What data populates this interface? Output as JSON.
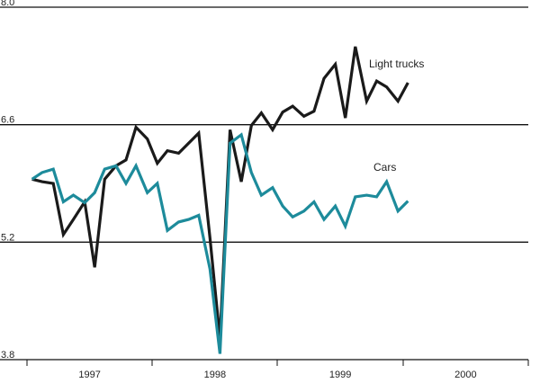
{
  "chart_data": {
    "type": "line",
    "x": [
      1997.04,
      1997.12,
      1997.21,
      1997.29,
      1997.37,
      1997.46,
      1997.54,
      1997.62,
      1997.71,
      1997.79,
      1997.87,
      1997.96,
      1998.04,
      1998.12,
      1998.21,
      1998.29,
      1998.37,
      1998.46,
      1998.54,
      1998.62,
      1998.71,
      1998.79,
      1998.87,
      1998.96,
      1999.04,
      1999.12,
      1999.21,
      1999.29,
      1999.37,
      1999.46,
      1999.54,
      1999.62,
      1999.71,
      1999.79,
      1999.87,
      1999.96,
      2000.04
    ],
    "series": [
      {
        "name": "Light trucks",
        "color": "#1a1a1a",
        "values": [
          5.95,
          5.92,
          5.9,
          5.29,
          5.47,
          5.68,
          4.9,
          5.95,
          6.11,
          6.18,
          6.57,
          6.43,
          6.14,
          6.29,
          6.26,
          6.38,
          6.5,
          5.25,
          4.05,
          6.54,
          5.92,
          6.59,
          6.74,
          6.54,
          6.75,
          6.82,
          6.7,
          6.76,
          7.15,
          7.32,
          6.68,
          7.53,
          6.88,
          7.12,
          7.05,
          6.88,
          7.1
        ]
      },
      {
        "name": "Cars",
        "color": "#1d8b9b",
        "values": [
          5.95,
          6.03,
          6.07,
          5.68,
          5.76,
          5.67,
          5.79,
          6.07,
          6.11,
          5.9,
          6.11,
          5.79,
          5.9,
          5.34,
          5.44,
          5.47,
          5.52,
          4.88,
          3.87,
          6.38,
          6.48,
          6.03,
          5.76,
          5.85,
          5.63,
          5.5,
          5.57,
          5.68,
          5.47,
          5.63,
          5.39,
          5.74,
          5.76,
          5.74,
          5.92,
          5.57,
          5.69
        ]
      }
    ],
    "xlim": [
      1997,
      2001
    ],
    "xticks": [
      {
        "value": 1997.5,
        "label": "1997"
      },
      {
        "value": 1998.5,
        "label": "1998"
      },
      {
        "value": 1999.5,
        "label": "1999"
      },
      {
        "value": 2000.5,
        "label": "2000"
      }
    ],
    "ylim": [
      3.8,
      8.0
    ],
    "yticks": [
      {
        "value": 3.8,
        "label": "3.8"
      },
      {
        "value": 5.2,
        "label": "5.2"
      },
      {
        "value": 6.6,
        "label": "6.6"
      },
      {
        "value": 8.0,
        "label": "8.0"
      }
    ],
    "grid": true
  }
}
